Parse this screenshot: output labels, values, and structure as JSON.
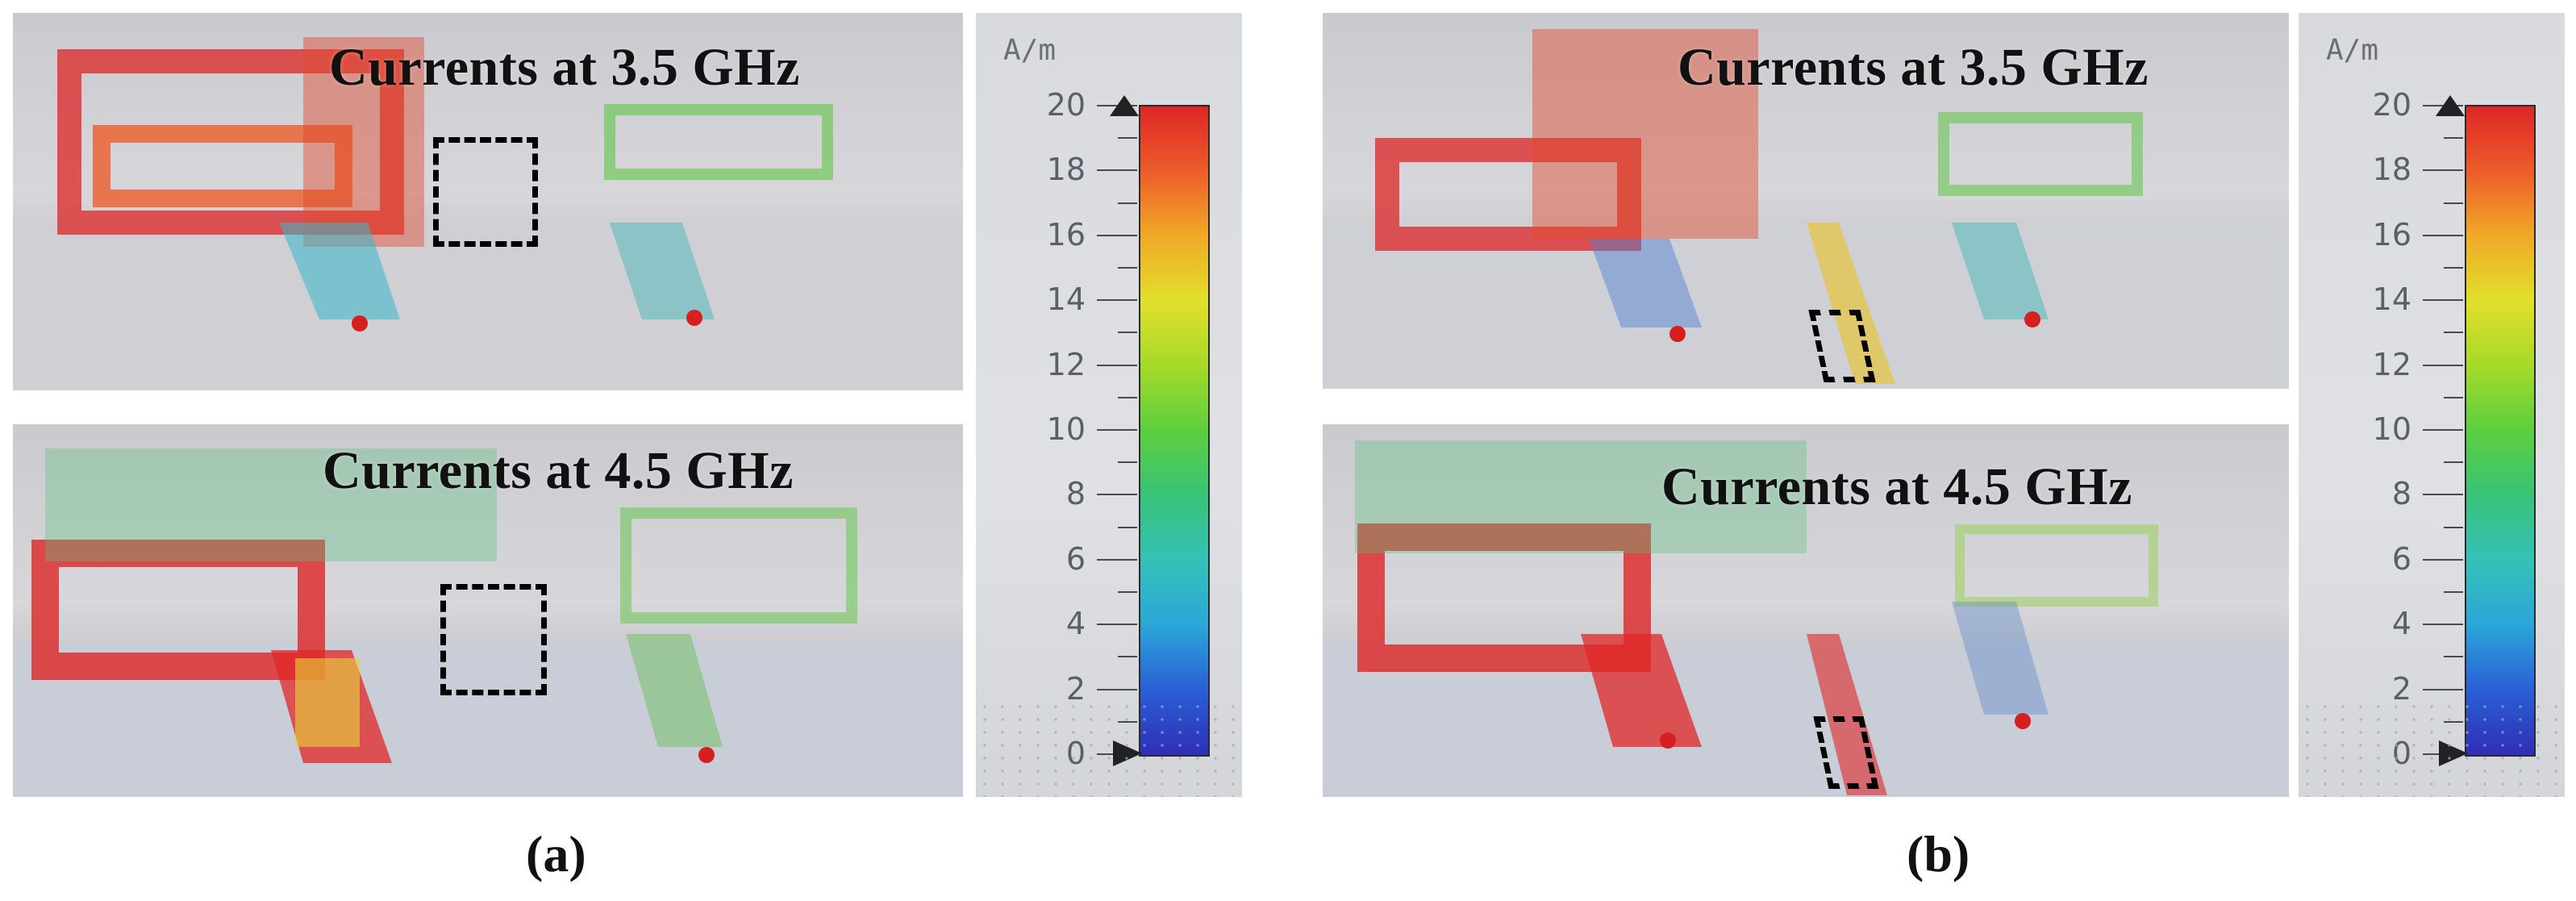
{
  "panels": {
    "a_top": {
      "title": "Currents at 3.5 GHz"
    },
    "a_bottom": {
      "title": "Currents at 4.5 GHz"
    },
    "b_top": {
      "title": "Currents at 3.5 GHz"
    },
    "b_bottom": {
      "title": "Currents at 4.5 GHz"
    }
  },
  "colorbar": {
    "unit": "A/m",
    "ticks": [
      "0",
      "2",
      "4",
      "6",
      "8",
      "10",
      "12",
      "14",
      "16",
      "18",
      "20"
    ],
    "min": 0,
    "max": 20,
    "colors": [
      "#2f2fb6",
      "#2ba6d8",
      "#39c27a",
      "#e1e02a",
      "#dd2626"
    ]
  },
  "captions": {
    "a": "(a)",
    "b": "(b)"
  }
}
